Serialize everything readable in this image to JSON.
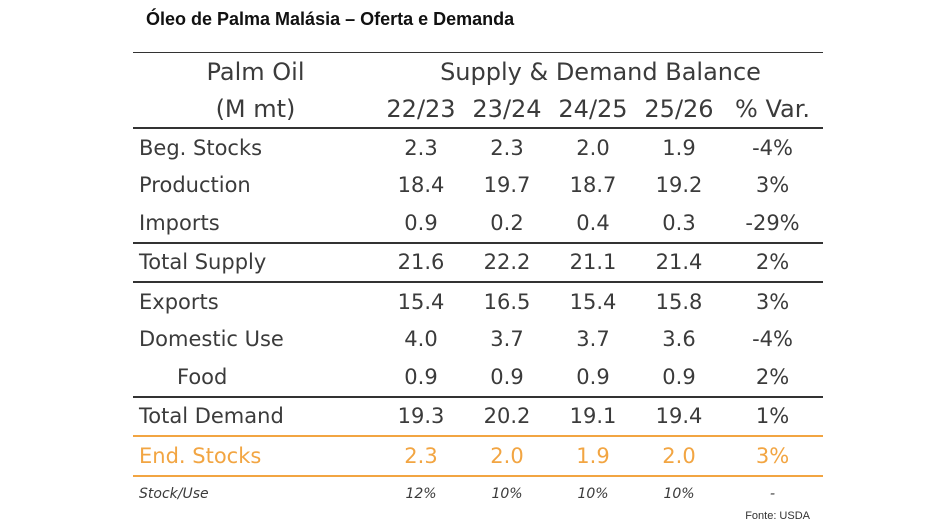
{
  "title": "Óleo de Palma Malásia – Oferta e Demanda",
  "table": {
    "header_line1_left": "Palm Oil",
    "header_line1_right": "Supply & Demand Balance",
    "header_line2_left": "(M mt)",
    "columns": [
      "22/23",
      "23/24",
      "24/25",
      "25/26",
      "% Var."
    ],
    "rows": [
      {
        "label": "Beg. Stocks",
        "values": [
          "2.3",
          "2.3",
          "2.0",
          "1.9",
          "-4%"
        ]
      },
      {
        "label": "Production",
        "values": [
          "18.4",
          "19.7",
          "18.7",
          "19.2",
          "3%"
        ]
      },
      {
        "label": "Imports",
        "values": [
          "0.9",
          "0.2",
          "0.4",
          "0.3",
          "-29%"
        ]
      },
      {
        "label": "Total Supply",
        "values": [
          "21.6",
          "22.2",
          "21.1",
          "21.4",
          "2%"
        ]
      },
      {
        "label": "Exports",
        "values": [
          "15.4",
          "16.5",
          "15.4",
          "15.8",
          "3%"
        ]
      },
      {
        "label": "Domestic Use",
        "values": [
          "4.0",
          "3.7",
          "3.7",
          "3.6",
          "-4%"
        ]
      },
      {
        "label": "Food",
        "values": [
          "0.9",
          "0.9",
          "0.9",
          "0.9",
          "2%"
        ]
      },
      {
        "label": "Total Demand",
        "values": [
          "19.3",
          "20.2",
          "19.1",
          "19.4",
          "1%"
        ]
      },
      {
        "label": "End. Stocks",
        "values": [
          "2.3",
          "2.0",
          "1.9",
          "2.0",
          "3%"
        ]
      },
      {
        "label": "Stock/Use",
        "values": [
          "12%",
          "10%",
          "10%",
          "10%",
          "-"
        ]
      }
    ]
  },
  "source": "Fonte: USDA",
  "colors": {
    "highlight": "#f2a542",
    "rule": "#333333"
  }
}
